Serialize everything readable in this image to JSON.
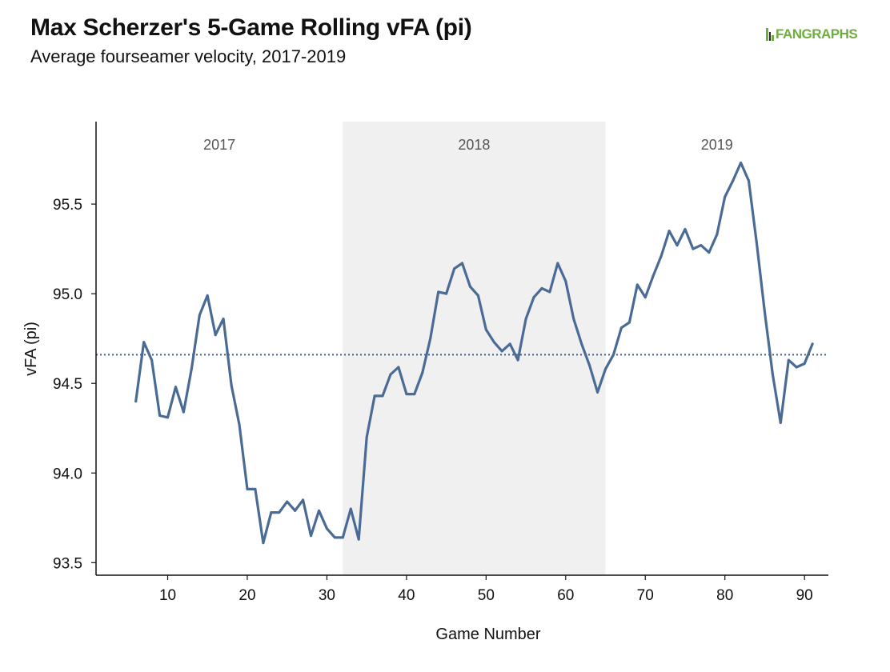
{
  "chart_data": {
    "type": "line",
    "title": "Max Scherzer's 5-Game Rolling vFA (pi)",
    "subtitle": "Average fourseamer velocity, 2017-2019",
    "xlabel": "Game Number",
    "ylabel": "vFA (pi)",
    "xlim": [
      1,
      93
    ],
    "ylim": [
      93.43,
      95.96
    ],
    "xticks": [
      10,
      20,
      30,
      40,
      50,
      60,
      70,
      80,
      90
    ],
    "yticks": [
      93.5,
      94.0,
      94.5,
      95.0,
      95.5
    ],
    "ytick_labels": [
      "93.5",
      "94.0",
      "94.5",
      "95.0",
      "95.5"
    ],
    "reference_line": {
      "value": 94.66,
      "style": "dotted"
    },
    "shaded_regions": [
      {
        "label": "2017",
        "x_from": 1,
        "x_to": 32,
        "shaded": false
      },
      {
        "label": "2018",
        "x_from": 32,
        "x_to": 65,
        "shaded": true
      },
      {
        "label": "2019",
        "x_from": 65,
        "x_to": 93,
        "shaded": false
      }
    ],
    "series": [
      {
        "x": [
          6,
          7,
          8,
          9,
          10,
          11,
          12,
          13,
          14,
          15,
          16,
          17,
          18,
          19,
          20,
          21,
          22,
          23,
          24,
          25,
          26,
          27,
          28,
          29,
          30,
          31,
          32,
          33,
          34,
          35,
          36,
          37,
          38,
          39,
          40,
          41,
          42,
          43,
          44,
          45,
          46,
          47,
          48,
          49,
          50,
          51,
          52,
          53,
          54,
          55,
          56,
          57,
          58,
          59,
          60,
          61,
          62,
          63,
          64,
          65,
          66,
          67,
          68,
          69,
          70,
          71,
          72,
          73,
          74,
          75,
          76,
          77,
          78,
          79,
          80,
          81,
          82,
          83,
          84,
          85,
          86,
          87,
          88,
          89,
          90,
          91
        ],
        "values": [
          94.4,
          94.73,
          94.63,
          94.32,
          94.31,
          94.48,
          94.34,
          94.58,
          94.88,
          94.99,
          94.77,
          94.86,
          94.49,
          94.27,
          93.91,
          93.91,
          93.61,
          93.78,
          93.78,
          93.84,
          93.79,
          93.85,
          93.65,
          93.79,
          93.69,
          93.64,
          93.64,
          93.8,
          93.63,
          94.2,
          94.43,
          94.43,
          94.55,
          94.59,
          94.44,
          94.44,
          94.56,
          94.75,
          95.01,
          95.0,
          95.14,
          95.17,
          95.04,
          94.99,
          94.8,
          94.73,
          94.68,
          94.72,
          94.63,
          94.86,
          94.98,
          95.03,
          95.01,
          95.17,
          95.07,
          94.86,
          94.72,
          94.6,
          94.45,
          94.58,
          94.66,
          94.81,
          94.84,
          95.05,
          94.98,
          95.1,
          95.21,
          95.35,
          95.27,
          95.36,
          95.25,
          95.27,
          95.23,
          95.33,
          95.54,
          95.63,
          95.73,
          95.63,
          95.28,
          94.9,
          94.55,
          94.28,
          94.63,
          94.59,
          94.61,
          94.72
        ],
        "color": "#4a6b96"
      }
    ]
  },
  "logo": {
    "text": "FANGRAPHS"
  }
}
